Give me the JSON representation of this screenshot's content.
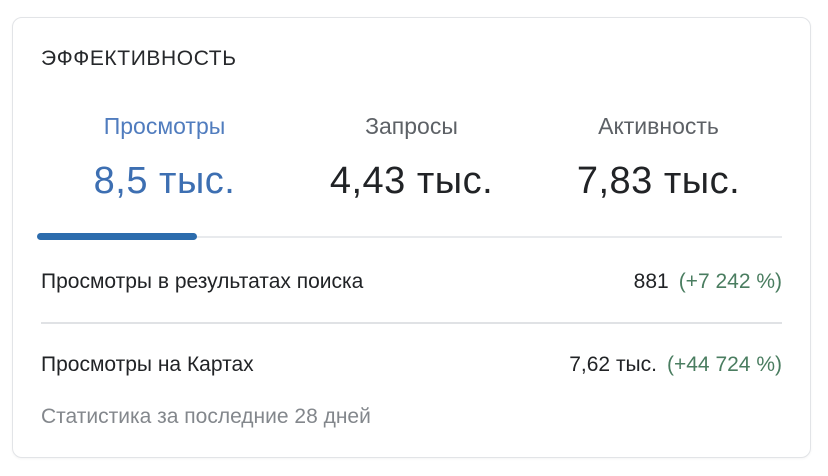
{
  "card": {
    "title": "ЭФФЕКТИВНОСТЬ",
    "tabs": [
      {
        "label": "Просмотры",
        "value": "8,5 тыс.",
        "active": true
      },
      {
        "label": "Запросы",
        "value": "4,43 тыс.",
        "active": false
      },
      {
        "label": "Активность",
        "value": "7,83 тыс.",
        "active": false
      }
    ],
    "rows": [
      {
        "label": "Просмотры в результатах поиска",
        "value": "881",
        "change": "(+7 242 %)"
      },
      {
        "label": "Просмотры на Картах",
        "value": "7,62 тыс.",
        "change": "(+44 724 %)"
      }
    ],
    "footer": "Статистика за последние 28 дней",
    "colors": {
      "active_tab_blue": "#3d6fb2",
      "indicator_blue": "#2c6cad",
      "positive_change_green": "#4a7d60",
      "inactive_tab_gray": "#5d6166",
      "text_dark": "#212326",
      "footer_gray": "#83878c"
    }
  }
}
